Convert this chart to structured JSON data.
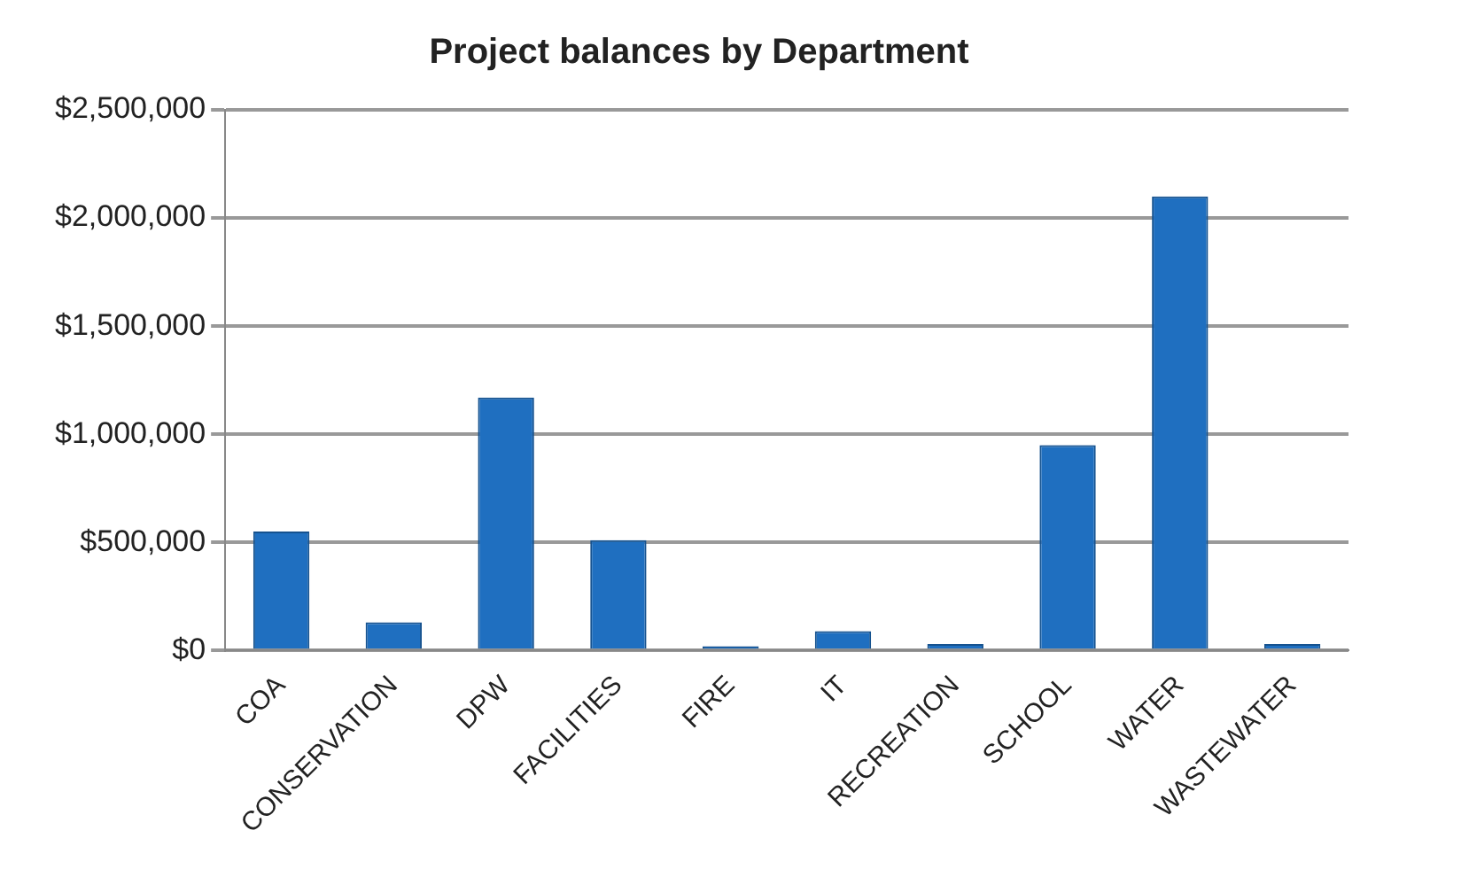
{
  "chart_data": {
    "type": "bar",
    "title": "Project balances by Department",
    "categories": [
      "COA",
      "CONSERVATION",
      "DPW",
      "FACILITIES",
      "FIRE",
      "IT",
      "RECREATION",
      "SCHOOL",
      "WATER",
      "WASTEWATER"
    ],
    "values": [
      550000,
      130000,
      1170000,
      510000,
      20000,
      90000,
      30000,
      950000,
      2100000,
      30000
    ],
    "color": "#1f6fc0",
    "ylim": [
      0,
      2500000
    ],
    "yticks": [
      {
        "value": 0,
        "label": "$0"
      },
      {
        "value": 500000,
        "label": "$500,000"
      },
      {
        "value": 1000000,
        "label": "$1,000,000"
      },
      {
        "value": 1500000,
        "label": "$1,500,000"
      },
      {
        "value": 2000000,
        "label": "$2,000,000"
      },
      {
        "value": 2500000,
        "label": "$2,500,000"
      }
    ],
    "grid": "y",
    "legend": false
  }
}
